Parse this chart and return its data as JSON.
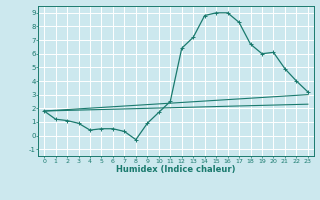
{
  "title": "",
  "xlabel": "Humidex (Indice chaleur)",
  "bg_color": "#cce8ee",
  "grid_color": "#ffffff",
  "line_color": "#1a7a6e",
  "xlim": [
    -0.5,
    23.5
  ],
  "ylim": [
    -1.5,
    9.5
  ],
  "xticks": [
    0,
    1,
    2,
    3,
    4,
    5,
    6,
    7,
    8,
    9,
    10,
    11,
    12,
    13,
    14,
    15,
    16,
    17,
    18,
    19,
    20,
    21,
    22,
    23
  ],
  "yticks": [
    -1,
    0,
    1,
    2,
    3,
    4,
    5,
    6,
    7,
    8,
    9
  ],
  "line1_x": [
    0,
    1,
    2,
    3,
    4,
    5,
    6,
    7,
    8,
    9,
    10,
    11,
    12,
    13,
    14,
    15,
    16,
    17,
    18,
    19,
    20,
    21,
    22,
    23
  ],
  "line1_y": [
    1.8,
    1.2,
    1.1,
    0.9,
    0.4,
    0.5,
    0.5,
    0.3,
    -0.3,
    0.9,
    1.7,
    2.5,
    6.4,
    7.2,
    8.8,
    9.0,
    9.0,
    8.3,
    6.7,
    6.0,
    6.1,
    4.9,
    4.0,
    3.2
  ],
  "line2_x": [
    0,
    23
  ],
  "line2_y": [
    1.8,
    3.0
  ],
  "line3_x": [
    0,
    23
  ],
  "line3_y": [
    1.8,
    2.3
  ],
  "marker": "+"
}
